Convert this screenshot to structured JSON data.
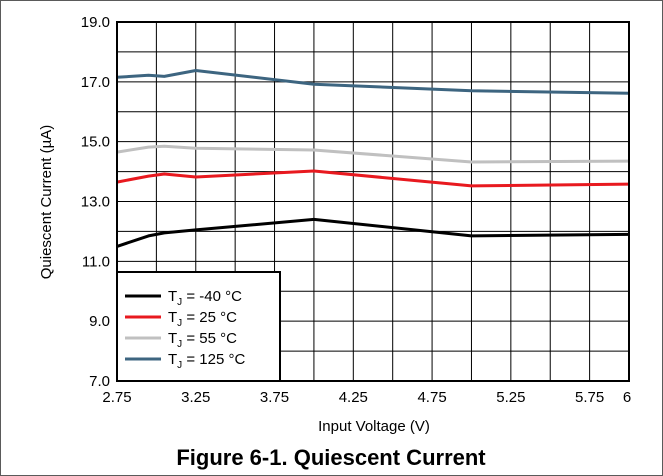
{
  "chart_data": {
    "type": "line",
    "caption": "Figure 6-1. Quiescent Current",
    "xlabel": "Input Voltage (V)",
    "ylabel": "Quiescent Current (µA)",
    "xlim": [
      2.75,
      6
    ],
    "ylim": [
      7,
      19
    ],
    "x_ticks": [
      2.75,
      3.25,
      3.75,
      4.25,
      4.75,
      5.25,
      5.75,
      6
    ],
    "x_tick_labels": [
      "2.75",
      "3.25",
      "3.75",
      "4.25",
      "4.75",
      "5.25",
      "5.75",
      "6"
    ],
    "y_ticks": [
      7,
      9,
      11,
      13,
      15,
      17,
      19
    ],
    "y_tick_labels": [
      "7.0",
      "9.0",
      "11.0",
      "13.0",
      "15.0",
      "17.0",
      "19.0"
    ],
    "grid": true,
    "x_grid_step": 0.25,
    "y_grid_step": 1,
    "legend_position": "bottom-left",
    "series": [
      {
        "name_main": "T",
        "name_sub": "J",
        "name_rest": " = -40 °C",
        "color": "#000000",
        "x": [
          2.75,
          2.95,
          3.05,
          3.25,
          4.0,
          5.0,
          6.0
        ],
        "y": [
          11.5,
          11.85,
          11.95,
          12.05,
          12.4,
          11.85,
          11.9
        ]
      },
      {
        "name_main": "T",
        "name_sub": "J",
        "name_rest": " = 25 °C",
        "color": "#e8191f",
        "x": [
          2.75,
          2.95,
          3.05,
          3.25,
          4.0,
          5.0,
          6.0
        ],
        "y": [
          13.65,
          13.85,
          13.92,
          13.82,
          14.02,
          13.52,
          13.58
        ]
      },
      {
        "name_main": "T",
        "name_sub": "J",
        "name_rest": " = 55 °C",
        "color": "#c0c0c0",
        "x": [
          2.75,
          2.95,
          3.05,
          3.25,
          4.0,
          5.0,
          6.0
        ],
        "y": [
          14.65,
          14.82,
          14.85,
          14.78,
          14.72,
          14.32,
          14.35
        ]
      },
      {
        "name_main": "T",
        "name_sub": "J",
        "name_rest": " = 125 °C",
        "color": "#3d6580",
        "x": [
          2.75,
          2.95,
          3.05,
          3.25,
          4.0,
          5.0,
          6.0
        ],
        "y": [
          17.15,
          17.22,
          17.18,
          17.38,
          16.92,
          16.7,
          16.62
        ]
      }
    ]
  }
}
